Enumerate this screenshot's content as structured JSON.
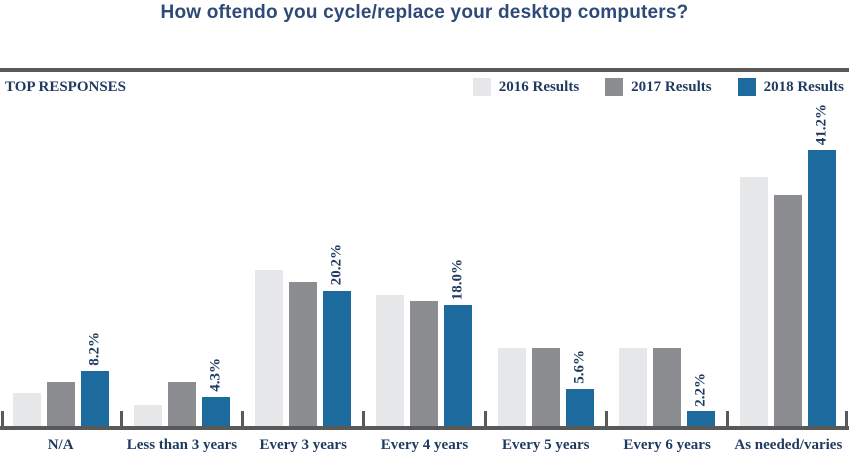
{
  "title": "How oftendo you cycle/replace your desktop computers?",
  "header": {
    "label": "TOP RESPONSES"
  },
  "legend": {
    "items": [
      {
        "label": "2016 Results",
        "color": "#e6e7e8"
      },
      {
        "label": "2017 Results",
        "color": "#8b8d90"
      },
      {
        "label": "2018 Results",
        "color": "#1d6a9e"
      }
    ]
  },
  "colors": {
    "title_text": "#2e4a78",
    "body_text": "#1f3a5f",
    "axis": "#58595b",
    "background": "#ffffff"
  },
  "chart_data": {
    "type": "bar",
    "title": "How oftendo you cycle/replace your desktop computers?",
    "categories": [
      "N/A",
      "Less than 3 years",
      "Every 3 years",
      "Every 4 years",
      "Every 5 years",
      "Every 6 years",
      "As needed/varies"
    ],
    "series": [
      {
        "name": "2016 Results",
        "color": "#e6e7e8",
        "values": [
          4.9,
          3.1,
          23.3,
          19.5,
          11.7,
          11.7,
          37.1
        ]
      },
      {
        "name": "2017 Results",
        "color": "#8b8d90",
        "values": [
          6.6,
          6.5,
          21.5,
          18.6,
          11.7,
          11.6,
          34.5
        ]
      },
      {
        "name": "2018 Results",
        "color": "#1d6a9e",
        "values": [
          8.2,
          4.3,
          20.2,
          18.0,
          5.6,
          2.2,
          41.2
        ],
        "data_labels": [
          "8.2%",
          "4.3%",
          "20.2%",
          "18.0%",
          "5.6%",
          "2.2%",
          "41.2%"
        ]
      }
    ],
    "ylim": [
      0,
      45
    ],
    "grid": false,
    "legend_position": "top-right",
    "data_labels_shown_for": "2018 Results",
    "data_label_orientation": "rotated-90-ccw"
  }
}
